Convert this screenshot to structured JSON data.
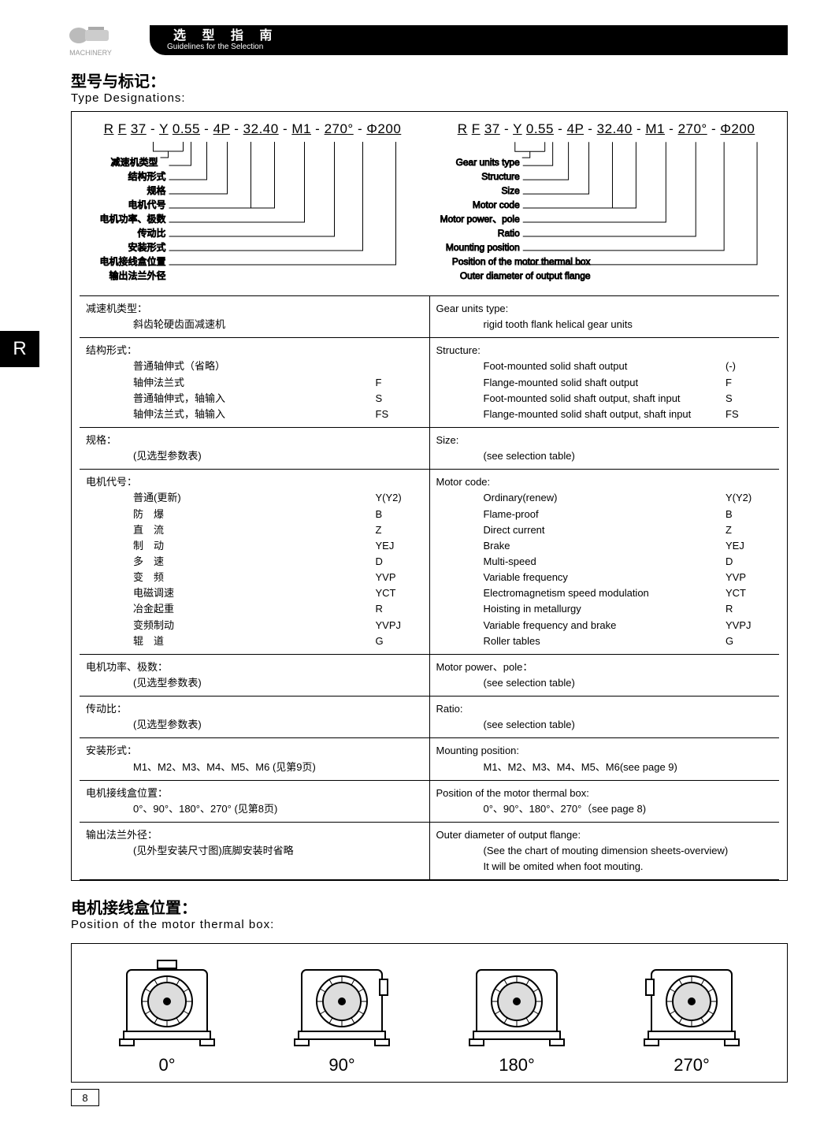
{
  "header": {
    "logo_text": "MACHINERY",
    "title_cn": "选 型 指 南",
    "title_en": "Guidelines for the Selection"
  },
  "side_tab": "R",
  "section1": {
    "title_cn": "型号与标记：",
    "title_en": "Type Designations:",
    "code": "R F 37 - Y 0.55 - 4P - 32.40 - M1 - 270° - Φ200",
    "labels_cn": [
      "减速机类型",
      "结构形式",
      "规格",
      "电机代号",
      "电机功率、极数",
      "传动比",
      "安装形式",
      "电机接线盒位置",
      "输出法兰外径"
    ],
    "labels_en": [
      "Gear units type",
      "Structure",
      "Size",
      "Motor code",
      "Motor power、pole",
      "Ratio",
      "Mounting position",
      "Position of the motor thermal box",
      "Outer diameter of output flange"
    ]
  },
  "table": [
    {
      "cn_hd": "减速机类型：",
      "cn_sub": "斜齿轮硬齿面减速机",
      "en_hd": "Gear units type:",
      "en_sub": "rigid tooth flank helical gear units"
    },
    {
      "cn_hd": "结构形式：",
      "cn_rows": [
        [
          "普通轴伸式（省略）",
          ""
        ],
        [
          "轴伸法兰式",
          "F"
        ],
        [
          "普通轴伸式，轴输入",
          "S"
        ],
        [
          "轴伸法兰式，轴输入",
          "FS"
        ]
      ],
      "en_hd": "Structure:",
      "en_rows": [
        [
          "Foot-mounted solid shaft output",
          "(-)"
        ],
        [
          "Flange-mounted solid shaft output",
          "F"
        ],
        [
          "Foot-mounted solid shaft output, shaft input",
          "S"
        ],
        [
          "Flange-mounted solid shaft output, shaft input",
          "FS"
        ]
      ]
    },
    {
      "cn_hd": "规格：",
      "cn_sub": "(见选型参数表)",
      "en_hd": "Size:",
      "en_sub": "(see selection table)"
    },
    {
      "cn_hd": "电机代号：",
      "cn_rows": [
        [
          "普通(更新)",
          "Y(Y2)"
        ],
        [
          "防　爆",
          "B"
        ],
        [
          "直　流",
          "Z"
        ],
        [
          "制　动",
          "YEJ"
        ],
        [
          "多　速",
          "D"
        ],
        [
          "变　频",
          "YVP"
        ],
        [
          "电磁调速",
          "YCT"
        ],
        [
          "冶金起重",
          "R"
        ],
        [
          "变频制动",
          "YVPJ"
        ],
        [
          "辊　道",
          "G"
        ]
      ],
      "en_hd": "Motor code:",
      "en_rows": [
        [
          "Ordinary(renew)",
          "Y(Y2)"
        ],
        [
          "Flame-proof",
          "B"
        ],
        [
          "Direct current",
          "Z"
        ],
        [
          "Brake",
          "YEJ"
        ],
        [
          "Multi-speed",
          "D"
        ],
        [
          "Variable frequency",
          "YVP"
        ],
        [
          "Electromagnetism speed modulation",
          "YCT"
        ],
        [
          "Hoisting in metallurgy",
          "R"
        ],
        [
          "Variable frequency and brake",
          "YVPJ"
        ],
        [
          "Roller tables",
          "G"
        ]
      ]
    },
    {
      "cn_hd": "电机功率、极数：",
      "cn_sub": "(见选型参数表)",
      "en_hd": "Motor power、pole：",
      "en_sub": "(see selection table)"
    },
    {
      "cn_hd": "传动比：",
      "cn_sub": "(见选型参数表)",
      "en_hd": "Ratio:",
      "en_sub": "(see selection table)"
    },
    {
      "cn_hd": "安装形式：",
      "cn_sub": "M1、M2、M3、M4、M5、M6 (见第9页)",
      "en_hd": "Mounting position:",
      "en_sub": "M1、M2、M3、M4、M5、M6(see page 9)"
    },
    {
      "cn_hd": "电机接线盒位置：",
      "cn_sub": "0°、90°、180°、270° (见第8页)",
      "en_hd": "Position of the motor thermal box:",
      "en_sub": "0°、90°、180°、270°（see page 8)"
    },
    {
      "cn_hd": "输出法兰外径：",
      "cn_sub": "(见外型安装尺寸图)底脚安装时省略",
      "en_hd": "Outer diameter of output flange:",
      "en_sub": "(See the chart of mouting dimension sheets-overview)\nIt will be omited when foot mouting."
    }
  ],
  "section2": {
    "title_cn": "电机接线盒位置：",
    "title_en": "Position of the motor thermal box:",
    "angles": [
      "0°",
      "90°",
      "180°",
      "270°"
    ]
  },
  "page_number": "8"
}
